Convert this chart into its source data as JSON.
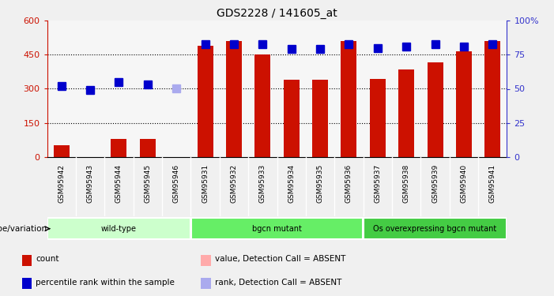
{
  "title": "GDS2228 / 141605_at",
  "samples": [
    "GSM95942",
    "GSM95943",
    "GSM95944",
    "GSM95945",
    "GSM95946",
    "GSM95931",
    "GSM95932",
    "GSM95933",
    "GSM95934",
    "GSM95935",
    "GSM95936",
    "GSM95937",
    "GSM95938",
    "GSM95939",
    "GSM95940",
    "GSM95941"
  ],
  "bar_values": [
    50,
    0,
    80,
    80,
    0,
    490,
    510,
    450,
    340,
    340,
    510,
    345,
    385,
    415,
    465,
    510
  ],
  "bar_absent": [
    false,
    true,
    false,
    false,
    true,
    false,
    false,
    false,
    false,
    false,
    false,
    false,
    false,
    false,
    false,
    false
  ],
  "rank_pct": [
    52,
    49,
    55,
    53,
    50,
    83,
    83,
    83,
    79,
    79,
    83,
    80,
    81,
    83,
    81,
    83
  ],
  "rank_absent": [
    false,
    false,
    false,
    false,
    true,
    false,
    false,
    false,
    false,
    false,
    false,
    false,
    false,
    false,
    false,
    false
  ],
  "ylim_left": [
    0,
    600
  ],
  "ylim_right": [
    0,
    100
  ],
  "yticks_left": [
    0,
    150,
    300,
    450,
    600
  ],
  "yticks_right": [
    0,
    25,
    50,
    75,
    100
  ],
  "hlines": [
    150,
    300,
    450
  ],
  "groups": [
    {
      "label": "wild-type",
      "start": 0,
      "end": 5,
      "color": "#ccffcc"
    },
    {
      "label": "bgcn mutant",
      "start": 5,
      "end": 11,
      "color": "#66ee66"
    },
    {
      "label": "Os overexpressing bgcn mutant",
      "start": 11,
      "end": 16,
      "color": "#44cc44"
    }
  ],
  "bar_color_present": "#cc1100",
  "bar_color_absent": "#ffaaaa",
  "rank_color_present": "#0000cc",
  "rank_color_absent": "#aaaaee",
  "marker_size": 7,
  "bar_width": 0.55,
  "left_label_color": "#cc1100",
  "right_label_color": "#3333cc",
  "legend_items": [
    {
      "color": "#cc1100",
      "label": "count"
    },
    {
      "color": "#0000cc",
      "label": "percentile rank within the sample"
    },
    {
      "color": "#ffaaaa",
      "label": "value, Detection Call = ABSENT"
    },
    {
      "color": "#aaaaee",
      "label": "rank, Detection Call = ABSENT"
    }
  ],
  "group_label": "genotype/variation",
  "background_color": "#f0f0f0",
  "plot_bg": "#ffffff",
  "xtick_bg": "#d8d8d8"
}
